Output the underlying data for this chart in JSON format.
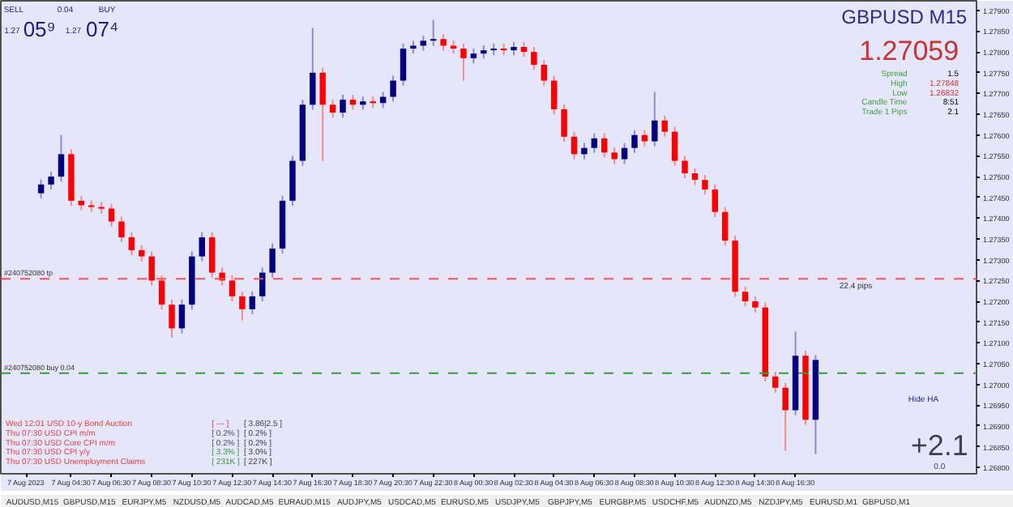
{
  "chart_data": {
    "type": "candlestick",
    "title": "GBPUSD M15",
    "x": [
      "2023-08-07T03:00",
      "2023-08-07T03:30",
      "2023-08-07T04:00",
      "2023-08-07T04:30",
      "2023-08-07T05:00",
      "2023-08-07T05:30",
      "2023-08-07T06:00",
      "2023-08-07T06:30",
      "2023-08-07T07:00",
      "2023-08-07T07:30",
      "2023-08-07T08:00",
      "2023-08-07T08:30",
      "2023-08-07T09:00",
      "2023-08-07T09:30",
      "2023-08-07T10:00",
      "2023-08-07T10:30",
      "2023-08-07T11:00",
      "2023-08-07T11:30",
      "2023-08-07T12:00",
      "2023-08-07T12:30",
      "2023-08-07T13:00",
      "2023-08-07T13:30",
      "2023-08-07T14:00",
      "2023-08-07T14:30",
      "2023-08-07T15:00",
      "2023-08-07T15:30",
      "2023-08-07T16:00",
      "2023-08-07T16:30",
      "2023-08-07T17:00",
      "2023-08-07T17:30",
      "2023-08-07T18:00",
      "2023-08-07T18:30",
      "2023-08-07T19:00",
      "2023-08-07T19:30",
      "2023-08-07T20:00",
      "2023-08-07T20:30",
      "2023-08-07T21:00",
      "2023-08-07T21:30",
      "2023-08-07T22:00",
      "2023-08-07T22:30",
      "2023-08-07T23:00",
      "2023-08-07T23:30",
      "2023-08-08T00:00",
      "2023-08-08T00:30",
      "2023-08-08T01:00",
      "2023-08-08T01:30",
      "2023-08-08T02:00",
      "2023-08-08T02:30",
      "2023-08-08T03:00",
      "2023-08-08T03:30",
      "2023-08-08T04:00",
      "2023-08-08T04:30",
      "2023-08-08T05:00",
      "2023-08-08T05:30",
      "2023-08-08T06:00",
      "2023-08-08T06:30",
      "2023-08-08T07:00",
      "2023-08-08T07:30",
      "2023-08-08T08:00",
      "2023-08-08T08:30",
      "2023-08-08T09:00",
      "2023-08-08T09:30",
      "2023-08-08T10:00",
      "2023-08-08T10:30",
      "2023-08-08T11:00",
      "2023-08-08T11:30",
      "2023-08-08T12:00",
      "2023-08-08T12:30",
      "2023-08-08T13:00",
      "2023-08-08T13:30",
      "2023-08-08T14:00",
      "2023-08-08T14:30",
      "2023-08-08T15:00",
      "2023-08-08T15:30",
      "2023-08-08T16:00",
      "2023-08-08T16:30",
      "2023-08-08T17:00",
      "2023-08-08T17:30"
    ],
    "ohlc": [
      [
        1.2746,
        1.27493,
        1.27448,
        1.27481
      ],
      [
        1.27481,
        1.27512,
        1.27469,
        1.275
      ],
      [
        1.275,
        1.276,
        1.27488,
        1.27554
      ],
      [
        1.27554,
        1.27566,
        1.2743,
        1.27442
      ],
      [
        1.27442,
        1.27454,
        1.27419,
        1.27431
      ],
      [
        1.27431,
        1.27443,
        1.27415,
        1.27427
      ],
      [
        1.27427,
        1.27439,
        1.27411,
        1.27423
      ],
      [
        1.27423,
        1.27435,
        1.2738,
        1.27392
      ],
      [
        1.27392,
        1.27404,
        1.27342,
        1.27354
      ],
      [
        1.27354,
        1.27366,
        1.27311,
        1.27323
      ],
      [
        1.27323,
        1.27335,
        1.27296,
        1.27308
      ],
      [
        1.27308,
        1.2732,
        1.27238,
        1.2725
      ],
      [
        1.2725,
        1.27262,
        1.2718,
        1.27192
      ],
      [
        1.27192,
        1.27204,
        1.27112,
        1.27135
      ],
      [
        1.27135,
        1.27204,
        1.27123,
        1.27192
      ],
      [
        1.27192,
        1.2732,
        1.2718,
        1.27308
      ],
      [
        1.27308,
        1.27366,
        1.27296,
        1.27354
      ],
      [
        1.27354,
        1.27366,
        1.27257,
        1.27269
      ],
      [
        1.27269,
        1.27281,
        1.27238,
        1.2725
      ],
      [
        1.2725,
        1.27262,
        1.272,
        1.27212
      ],
      [
        1.27212,
        1.27224,
        1.27154,
        1.27181
      ],
      [
        1.27181,
        1.27224,
        1.27169,
        1.27212
      ],
      [
        1.27212,
        1.27281,
        1.272,
        1.27269
      ],
      [
        1.27269,
        1.27339,
        1.27257,
        1.27327
      ],
      [
        1.27327,
        1.27454,
        1.27315,
        1.27442
      ],
      [
        1.27442,
        1.2755,
        1.2743,
        1.27538
      ],
      [
        1.27538,
        1.27685,
        1.27526,
        1.27673
      ],
      [
        1.27673,
        1.27858,
        1.27661,
        1.2775
      ],
      [
        1.2775,
        1.27762,
        1.27538,
        1.27673
      ],
      [
        1.27673,
        1.27685,
        1.27642,
        1.27654
      ],
      [
        1.27654,
        1.27697,
        1.27642,
        1.27685
      ],
      [
        1.27685,
        1.27697,
        1.27661,
        1.27673
      ],
      [
        1.27673,
        1.27693,
        1.27661,
        1.27681
      ],
      [
        1.27681,
        1.27693,
        1.27665,
        1.27677
      ],
      [
        1.27677,
        1.27704,
        1.27665,
        1.27692
      ],
      [
        1.27692,
        1.27743,
        1.2768,
        1.27731
      ],
      [
        1.27731,
        1.2782,
        1.27719,
        1.27808
      ],
      [
        1.27808,
        1.27827,
        1.27796,
        1.27815
      ],
      [
        1.27815,
        1.27839,
        1.27803,
        1.27827
      ],
      [
        1.27827,
        1.27877,
        1.27815,
        1.27831
      ],
      [
        1.27831,
        1.27843,
        1.27803,
        1.27815
      ],
      [
        1.27815,
        1.27827,
        1.27796,
        1.27808
      ],
      [
        1.27808,
        1.2782,
        1.27731,
        1.27785
      ],
      [
        1.27785,
        1.27808,
        1.27773,
        1.27796
      ],
      [
        1.27796,
        1.27816,
        1.27784,
        1.27804
      ],
      [
        1.27804,
        1.2782,
        1.27792,
        1.27808
      ],
      [
        1.27808,
        1.2782,
        1.27792,
        1.27804
      ],
      [
        1.27804,
        1.27824,
        1.27792,
        1.27812
      ],
      [
        1.27812,
        1.27824,
        1.27788,
        1.278
      ],
      [
        1.278,
        1.27812,
        1.27757,
        1.27769
      ],
      [
        1.27769,
        1.27781,
        1.27719,
        1.27731
      ],
      [
        1.27731,
        1.27743,
        1.2765,
        1.27662
      ],
      [
        1.27662,
        1.27674,
        1.27584,
        1.27596
      ],
      [
        1.27596,
        1.27608,
        1.27542,
        1.27554
      ],
      [
        1.27554,
        1.27581,
        1.27542,
        1.27569
      ],
      [
        1.27569,
        1.27604,
        1.27557,
        1.27592
      ],
      [
        1.27592,
        1.27604,
        1.27546,
        1.27558
      ],
      [
        1.27558,
        1.2757,
        1.2753,
        1.27542
      ],
      [
        1.27542,
        1.27581,
        1.2753,
        1.27569
      ],
      [
        1.27569,
        1.27612,
        1.27557,
        1.276
      ],
      [
        1.276,
        1.27612,
        1.27573,
        1.27585
      ],
      [
        1.27585,
        1.27704,
        1.27573,
        1.27635
      ],
      [
        1.27635,
        1.27647,
        1.27596,
        1.27608
      ],
      [
        1.27608,
        1.2762,
        1.27526,
        1.27538
      ],
      [
        1.27538,
        1.2755,
        1.27496,
        1.27508
      ],
      [
        1.27508,
        1.2752,
        1.2748,
        1.27492
      ],
      [
        1.27492,
        1.27504,
        1.27457,
        1.27469
      ],
      [
        1.27469,
        1.27481,
        1.27403,
        1.27415
      ],
      [
        1.27415,
        1.27427,
        1.27334,
        1.27346
      ],
      [
        1.27346,
        1.27358,
        1.27211,
        1.27223
      ],
      [
        1.27223,
        1.27235,
        1.27188,
        1.272
      ],
      [
        1.272,
        1.27212,
        1.27173,
        1.27185
      ],
      [
        1.27185,
        1.27197,
        1.27007,
        1.27019
      ],
      [
        1.27019,
        1.27031,
        1.2698,
        1.26992
      ],
      [
        1.26992,
        1.27004,
        1.2684,
        1.26938
      ],
      [
        1.26938,
        1.27127,
        1.26926,
        1.27069
      ],
      [
        1.27069,
        1.27081,
        1.26903,
        1.26915
      ],
      [
        1.26915,
        1.27071,
        1.26832,
        1.27059
      ]
    ],
    "xlim": [
      "2023-08-07T01:00",
      "2023-08-09T01:30"
    ],
    "ylim": [
      1.26785,
      1.27923
    ],
    "xticks": [
      {
        "value": "2023-08-07T02:15",
        "label": "7 Aug 2023"
      },
      {
        "value": "2023-08-07T04:30",
        "label": "7 Aug 04:30"
      },
      {
        "value": "2023-08-07T06:30",
        "label": "7 Aug 06:30"
      },
      {
        "value": "2023-08-07T08:30",
        "label": "7 Aug 08:30"
      },
      {
        "value": "2023-08-07T10:30",
        "label": "7 Aug 10:30"
      },
      {
        "value": "2023-08-07T12:30",
        "label": "7 Aug 12:30"
      },
      {
        "value": "2023-08-07T14:30",
        "label": "7 Aug 14:30"
      },
      {
        "value": "2023-08-07T16:30",
        "label": "7 Aug 16:30"
      },
      {
        "value": "2023-08-07T18:30",
        "label": "7 Aug 18:30"
      },
      {
        "value": "2023-08-07T20:30",
        "label": "7 Aug 20:30"
      },
      {
        "value": "2023-08-07T22:30",
        "label": "7 Aug 22:30"
      },
      {
        "value": "2023-08-08T00:30",
        "label": "8 Aug 00:30"
      },
      {
        "value": "2023-08-08T02:30",
        "label": "8 Aug 02:30"
      },
      {
        "value": "2023-08-08T04:30",
        "label": "8 Aug 04:30"
      },
      {
        "value": "2023-08-08T06:30",
        "label": "8 Aug 06:30"
      },
      {
        "value": "2023-08-08T08:30",
        "label": "8 Aug 08:30"
      },
      {
        "value": "2023-08-08T10:30",
        "label": "8 Aug 10:30"
      },
      {
        "value": "2023-08-08T12:30",
        "label": "8 Aug 12:30"
      },
      {
        "value": "2023-08-08T14:30",
        "label": "8 Aug 14:30"
      },
      {
        "value": "2023-08-08T16:30",
        "label": "8 Aug 16:30"
      }
    ],
    "yticks": [
      {
        "value": 1.268,
        "label": "1.26800"
      },
      {
        "value": 1.2685,
        "label": "1.26850"
      },
      {
        "value": 1.269,
        "label": "1.26900"
      },
      {
        "value": 1.2695,
        "label": "1.26950"
      },
      {
        "value": 1.27,
        "label": "1.27000"
      },
      {
        "value": 1.2705,
        "label": "1.27050"
      },
      {
        "value": 1.271,
        "label": "1.27100"
      },
      {
        "value": 1.2715,
        "label": "1.27150"
      },
      {
        "value": 1.272,
        "label": "1.27200"
      },
      {
        "value": 1.2725,
        "label": "1.27250"
      },
      {
        "value": 1.273,
        "label": "1.27300"
      },
      {
        "value": 1.2735,
        "label": "1.27350"
      },
      {
        "value": 1.274,
        "label": "1.27400"
      },
      {
        "value": 1.2745,
        "label": "1.27450"
      },
      {
        "value": 1.275,
        "label": "1.27500"
      },
      {
        "value": 1.2755,
        "label": "1.27550"
      },
      {
        "value": 1.276,
        "label": "1.27600"
      },
      {
        "value": 1.2765,
        "label": "1.27650"
      },
      {
        "value": 1.277,
        "label": "1.27700"
      },
      {
        "value": 1.2775,
        "label": "1.27750"
      },
      {
        "value": 1.278,
        "label": "1.27800"
      },
      {
        "value": 1.2785,
        "label": "1.27850"
      },
      {
        "value": 1.279,
        "label": "1.27900"
      }
    ],
    "ref_lines": [
      {
        "axis": "y",
        "value": 1.27254,
        "label": "#240752080 tp",
        "color": "#ff5050",
        "line_style": "dashed"
      },
      {
        "axis": "y",
        "value": 1.27027,
        "label": "#240752080 buy 0.04",
        "color": "#30a030",
        "line_style": "dashed"
      }
    ],
    "annotations": [
      "1.27059",
      "Spread",
      "1.5",
      "High",
      "1.27848",
      "Low",
      "1.26832",
      "Candle Time",
      "8:51",
      "Trade 1 Pips",
      "2.1",
      "SELL",
      "0.04",
      "BUY",
      "1.27",
      "05⁹",
      "1.27",
      "07⁴",
      "Wed 12:01 USD 10-y Bond Auction",
      "[ --- ]",
      "[ 3.86|2.5 ]",
      "Thu 07:30 USD CPI m/m",
      "[ 0.2% ]",
      "[ 0.2% ]",
      "Thu 07:30 USD Core CPI m/m",
      "[ 0.2% ]",
      "[ 0.2% ]",
      "Thu 07:30 USD CPI y/y",
      "[ 3.3% ]",
      "[ 3.0% ]",
      "Thu 07:30 USD Unemployment Claims",
      "[ 231K ]",
      "[ 227K ]",
      {
        "text": "22.4 pips",
        "x": "2023-08-08T19:30",
        "y": 1.27254
      },
      "Hide HA",
      "+2.1",
      "0.0",
      "AUDUSD,M15",
      "GBPUSD,M15",
      "EURJPY,M5",
      "NZDUSD,M5",
      "AUDCAD,M5",
      "EURAUD,M15",
      "AUDJPY,M5",
      "USDCAD,M5",
      "EURUSD,M5",
      "USDJPY,M5",
      "GBPJPY,M5",
      "EURGBP,M5",
      "USDCHF,M5",
      "AUDNZD,M5",
      "NZDJPY,M5",
      "EURUSD,M1",
      "GBPUSD,M1"
    ]
  }
}
